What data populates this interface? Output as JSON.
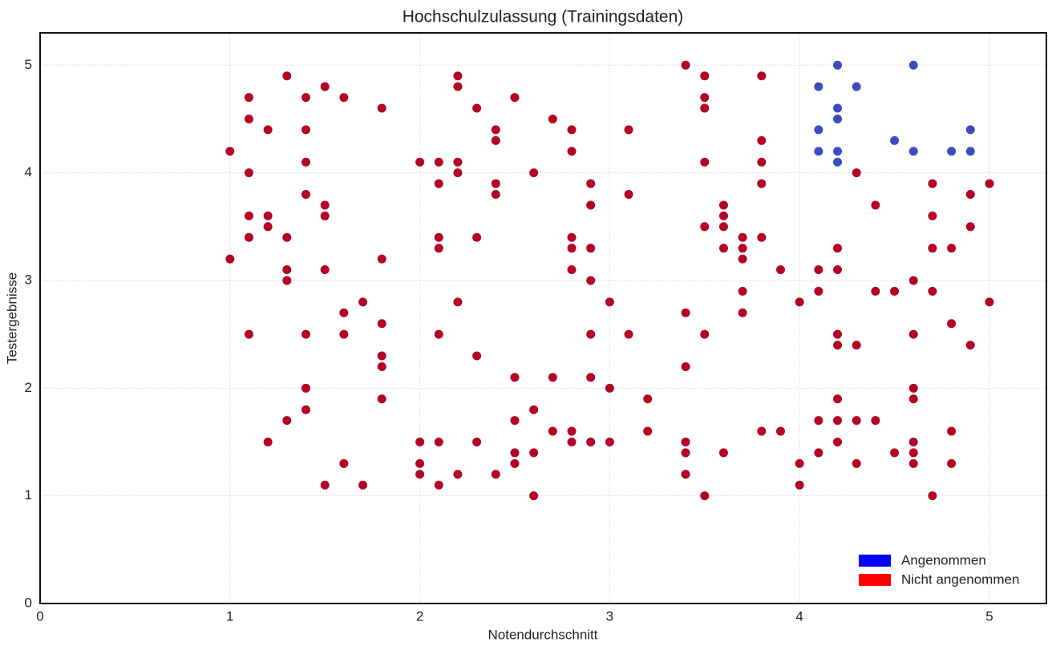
{
  "chart_data": {
    "type": "scatter",
    "title": "Hochschulzulassung (Trainingsdaten)",
    "x_label": "Notendurchschnitt",
    "y_label": "Testergebnisse",
    "xlim": [
      0,
      5.3
    ],
    "ylim": [
      0,
      5.3
    ],
    "xticks": [
      0,
      1,
      2,
      3,
      4,
      5
    ],
    "yticks": [
      0,
      1,
      2,
      3,
      4,
      5
    ],
    "grid": true,
    "legend": "lower right",
    "series": [
      {
        "name": "Angenommen",
        "color": "#3b4cc0",
        "legend_color": "#0000ff",
        "x": [
          4.1,
          4.1,
          4.1,
          4.2,
          4.2,
          4.2,
          4.2,
          4.2,
          4.3,
          4.5,
          4.6,
          4.6,
          4.8,
          4.9,
          4.9
        ],
        "values": [
          4.8,
          4.4,
          4.2,
          5,
          4.6,
          4.5,
          4.2,
          4.1,
          4.8,
          4.3,
          5,
          4.2,
          4.2,
          4.4,
          4.2
        ]
      },
      {
        "name": "Nicht angenommen",
        "color": "#b40426",
        "legend_color": "#ff0000",
        "x": [
          1,
          1,
          1.1,
          1.1,
          1.1,
          1.1,
          1.1,
          1.1,
          1.2,
          1.2,
          1.2,
          1.2,
          1.3,
          1.3,
          1.3,
          1.3,
          1.3,
          1.4,
          1.4,
          1.4,
          1.4,
          1.4,
          1.4,
          1.4,
          1.5,
          1.5,
          1.5,
          1.5,
          1.5,
          1.6,
          1.6,
          1.6,
          1.6,
          1.7,
          1.7,
          1.8,
          1.8,
          1.8,
          1.8,
          1.8,
          1.8,
          2,
          2,
          2,
          2,
          2.1,
          2.1,
          2.1,
          2.1,
          2.1,
          2.1,
          2.1,
          2.2,
          2.2,
          2.2,
          2.2,
          2.2,
          2.2,
          2.3,
          2.3,
          2.3,
          2.3,
          2.4,
          2.4,
          2.4,
          2.4,
          2.4,
          2.5,
          2.5,
          2.5,
          2.5,
          2.5,
          2.6,
          2.6,
          2.6,
          2.6,
          2.7,
          2.7,
          2.7,
          2.8,
          2.8,
          2.8,
          2.8,
          2.8,
          2.8,
          2.8,
          2.9,
          2.9,
          2.9,
          2.9,
          2.9,
          2.9,
          2.9,
          3,
          3,
          3,
          3.1,
          3.1,
          3.1,
          3.2,
          3.2,
          3.4,
          3.4,
          3.4,
          3.4,
          3.4,
          3.4,
          3.5,
          3.5,
          3.5,
          3.5,
          3.5,
          3.5,
          3.5,
          3.6,
          3.6,
          3.6,
          3.6,
          3.6,
          3.7,
          3.7,
          3.7,
          3.7,
          3.7,
          3.8,
          3.8,
          3.8,
          3.8,
          3.8,
          3.8,
          3.9,
          3.9,
          4,
          4,
          4,
          4.1,
          4.1,
          4.1,
          4.1,
          4.2,
          4.2,
          4.2,
          4.2,
          4.2,
          4.2,
          4.2,
          4.3,
          4.3,
          4.3,
          4.3,
          4.4,
          4.4,
          4.4,
          4.5,
          4.5,
          4.6,
          4.6,
          4.6,
          4.6,
          4.6,
          4.6,
          4.6,
          4.7,
          4.7,
          4.7,
          4.7,
          4.7,
          4.8,
          4.8,
          4.8,
          4.8,
          4.9,
          4.9,
          4.9,
          5,
          5
        ],
        "values": [
          4.2,
          3.2,
          4.7,
          4.5,
          4,
          3.6,
          3.4,
          2.5,
          4.4,
          3.6,
          3.5,
          1.5,
          4.9,
          3.4,
          3.1,
          3,
          1.7,
          4.7,
          4.4,
          4.1,
          3.8,
          2.5,
          2,
          1.8,
          4.8,
          3.7,
          3.6,
          3.1,
          1.1,
          4.7,
          2.7,
          2.5,
          1.3,
          2.8,
          1.1,
          4.6,
          3.2,
          2.6,
          2.3,
          2.2,
          1.9,
          4.1,
          1.5,
          1.3,
          1.2,
          4.1,
          3.9,
          3.4,
          3.3,
          2.5,
          1.5,
          1.1,
          4.9,
          4.8,
          4.1,
          4,
          2.8,
          1.2,
          4.6,
          3.4,
          2.3,
          1.5,
          4.4,
          4.3,
          3.9,
          3.8,
          1.2,
          4.7,
          2.1,
          1.7,
          1.4,
          1.3,
          4,
          1.8,
          1.4,
          1,
          4.5,
          2.1,
          1.6,
          4.4,
          4.2,
          3.4,
          3.3,
          3.1,
          1.6,
          1.5,
          3.9,
          3.7,
          3.3,
          3,
          2.5,
          2.1,
          1.5,
          2.8,
          2,
          1.5,
          4.4,
          3.8,
          2.5,
          1.9,
          1.6,
          5,
          2.7,
          2.2,
          1.5,
          1.4,
          1.2,
          4.9,
          4.7,
          4.6,
          4.1,
          3.5,
          2.5,
          1,
          3.7,
          3.6,
          3.5,
          3.3,
          1.4,
          3.4,
          3.3,
          3.2,
          2.9,
          2.7,
          4.9,
          4.3,
          4.1,
          3.9,
          3.4,
          1.6,
          3.1,
          1.6,
          2.8,
          1.3,
          1.1,
          3.1,
          2.9,
          1.7,
          1.4,
          3.3,
          3.1,
          2.5,
          2.4,
          1.9,
          1.7,
          1.5,
          4,
          2.4,
          1.7,
          1.3,
          3.7,
          2.9,
          1.7,
          2.9,
          1.4,
          3,
          2.5,
          2,
          1.9,
          1.5,
          1.4,
          1.3,
          3.9,
          3.6,
          3.3,
          2.9,
          1,
          3.3,
          2.6,
          1.6,
          1.3,
          3.8,
          3.5,
          2.4,
          3.9,
          2.8
        ]
      }
    ]
  }
}
